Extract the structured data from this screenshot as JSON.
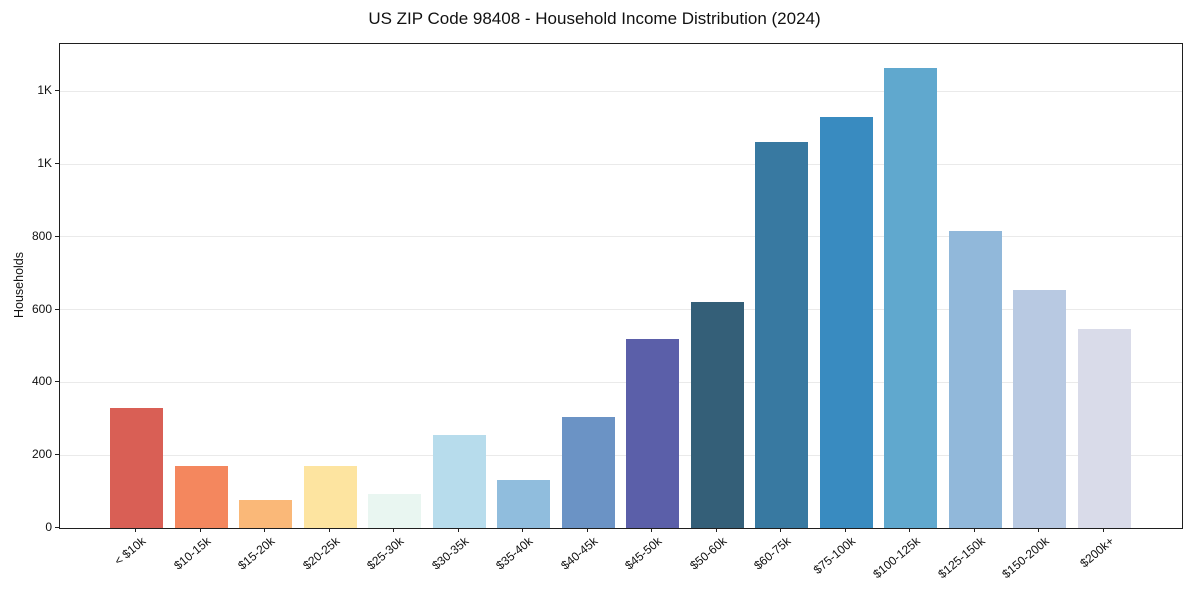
{
  "chart_data": {
    "type": "bar",
    "title": "US ZIP Code 98408 - Household Income Distribution (2024)",
    "xlabel": "",
    "ylabel": "Households",
    "categories": [
      "< $10k",
      "$10-15k",
      "$15-20k",
      "$20-25k",
      "$25-30k",
      "$30-35k",
      "$35-40k",
      "$40-45k",
      "$45-50k",
      "$50-60k",
      "$60-75k",
      "$75-100k",
      "$100-125k",
      "$125-150k",
      "$150-200k",
      "$200k+"
    ],
    "values": [
      330,
      170,
      78,
      170,
      93,
      255,
      132,
      305,
      520,
      620,
      1060,
      1130,
      1265,
      815,
      655,
      548
    ],
    "bar_colors": [
      "#d95f55",
      "#f4875e",
      "#fab878",
      "#fde4a0",
      "#e9f6f1",
      "#b7dcec",
      "#90bddd",
      "#6b93c5",
      "#5b5fa9",
      "#345f78",
      "#3879a1",
      "#398bc0",
      "#60a8ce",
      "#91b8da",
      "#b8c9e2",
      "#d9dbe9"
    ],
    "ylim": [
      0,
      1330
    ],
    "yticks": {
      "values": [
        0,
        200,
        400,
        600,
        800,
        1000,
        1200
      ],
      "labels": [
        "0",
        "200",
        "400",
        "600",
        "800",
        "1K",
        "1K"
      ]
    },
    "grid": "horizontal",
    "legend": "none",
    "background_color": "#ffffff",
    "spine_color": "#1f1f1f",
    "gridline_color": "#eaeaea",
    "text_color": "#111111"
  }
}
